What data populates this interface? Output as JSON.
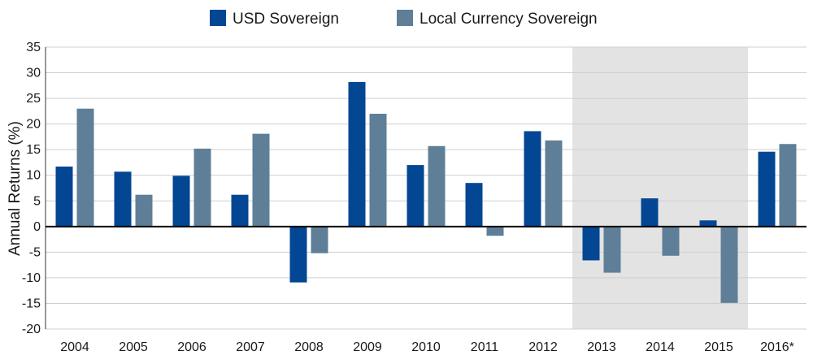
{
  "chart_data": {
    "type": "bar",
    "categories": [
      "2004",
      "2005",
      "2006",
      "2007",
      "2008",
      "2009",
      "2010",
      "2011",
      "2012",
      "2013",
      "2014",
      "2015",
      "2016*"
    ],
    "series": [
      {
        "name": "USD Sovereign",
        "color": "#034694",
        "values": [
          11.7,
          10.7,
          9.9,
          6.2,
          -10.9,
          28.2,
          12.0,
          8.5,
          18.6,
          -6.6,
          5.5,
          1.2,
          14.6
        ]
      },
      {
        "name": "Local Currency Sovereign",
        "color": "#5f7f98",
        "values": [
          23.0,
          6.2,
          15.2,
          18.1,
          -5.2,
          22.0,
          15.7,
          -1.8,
          16.8,
          -9.0,
          -5.7,
          -14.9,
          16.1
        ]
      }
    ],
    "ylabel": "Annual Returns (%)",
    "xlabel": "",
    "ylim": [
      -20,
      35
    ],
    "yticks": [
      35,
      30,
      25,
      20,
      15,
      10,
      5,
      0,
      -5,
      -10,
      -15,
      -20
    ],
    "grid": true,
    "legend_position": "top-center",
    "shaded_categories": [
      "2013",
      "2014",
      "2015"
    ],
    "shade_color": "#e3e3e3"
  }
}
